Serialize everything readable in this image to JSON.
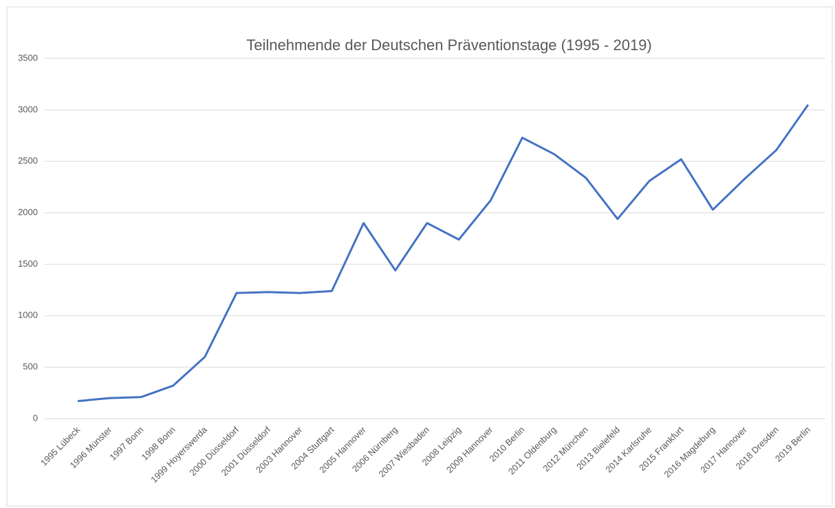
{
  "chart_data": {
    "type": "line",
    "title": "Teilnehmende der Deutschen Präventionstage (1995 - 2019)",
    "categories": [
      "1995 Lübeck",
      "1996 Münster",
      "1997 Bonn",
      "1998 Bonn",
      "1999 Hoyerswerda",
      "2000 Düsseldorf",
      "2001 Düsseldorf",
      "2003 Hannover",
      "2004 Stuttgart",
      "2005 Hannover",
      "2006 Nürnberg",
      "2007 Wiesbaden",
      "2008 Leipzig",
      "2009 Hannover",
      "2010 Berlin",
      "2011 Oldenburg",
      "2012 München",
      "2013 Bielefeld",
      "2014 Karlsruhe",
      "2015 Frankfurt",
      "2016 Magdeburg",
      "2017 Hannover",
      "2018 Dresden",
      "2019 Berlin"
    ],
    "values": [
      170,
      200,
      210,
      320,
      600,
      1220,
      1230,
      1220,
      1240,
      1900,
      1440,
      1900,
      1740,
      2120,
      2730,
      2570,
      2340,
      1940,
      2310,
      2520,
      2030,
      2330,
      2610,
      3050
    ],
    "color": "#4472c4",
    "ylim": [
      0,
      3500
    ],
    "yticks": [
      0,
      500,
      1000,
      1500,
      2000,
      2500,
      3000,
      3500
    ],
    "grid": true
  }
}
